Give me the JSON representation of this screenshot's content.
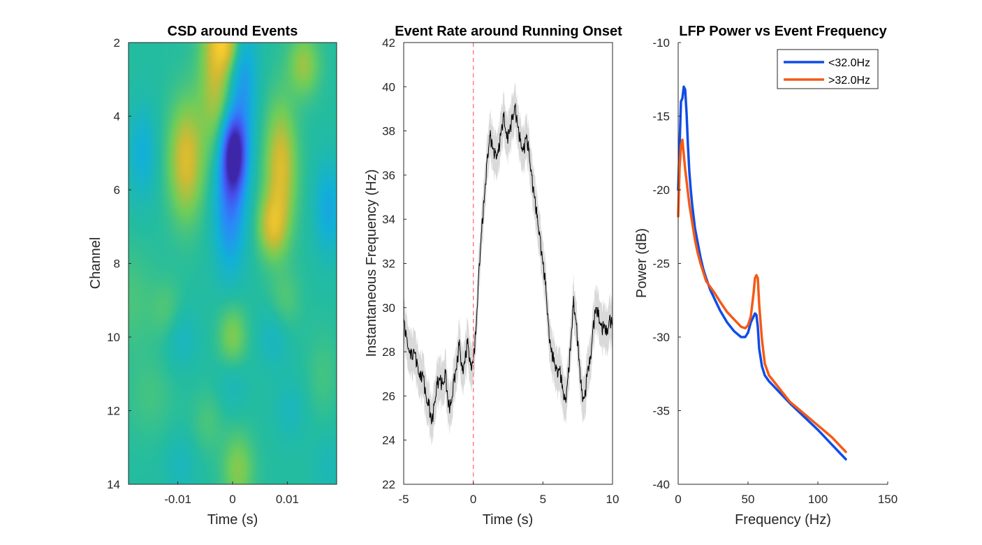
{
  "chart_data": [
    {
      "type": "heatmap",
      "title": "CSD around Events",
      "xlabel": "Time (s)",
      "ylabel": "Channel",
      "xlim": [
        -0.019,
        0.019
      ],
      "ylim": [
        2,
        14
      ],
      "y_reversed": true,
      "xticks": [
        -0.01,
        0,
        0.01
      ],
      "xtick_labels": [
        "-0.01",
        "0",
        "0.01"
      ],
      "yticks": [
        2,
        4,
        6,
        8,
        10,
        12,
        14
      ],
      "ytick_labels": [
        "2",
        "4",
        "6",
        "8",
        "10",
        "12",
        "14"
      ],
      "colormap": "parula",
      "color_range": [
        -1,
        1
      ],
      "features": [
        {
          "t": 0.0002,
          "ch": 5.0,
          "st": 0.0016,
          "sc": 0.75,
          "amp": -1.0
        },
        {
          "t": -0.0005,
          "ch": 6.5,
          "st": 0.002,
          "sc": 1.2,
          "amp": -0.5
        },
        {
          "t": 0.0018,
          "ch": 3.0,
          "st": 0.0018,
          "sc": 1.3,
          "amp": -0.4
        },
        {
          "t": -0.0085,
          "ch": 5.2,
          "st": 0.0022,
          "sc": 1.1,
          "amp": 0.55
        },
        {
          "t": 0.0088,
          "ch": 5.4,
          "st": 0.002,
          "sc": 1.2,
          "amp": 0.55
        },
        {
          "t": 0.0072,
          "ch": 7.0,
          "st": 0.0018,
          "sc": 0.6,
          "amp": 0.45
        },
        {
          "t": -0.003,
          "ch": 3.0,
          "st": 0.0022,
          "sc": 1.3,
          "amp": 0.45
        },
        {
          "t": -0.0012,
          "ch": 2.0,
          "st": 0.002,
          "sc": 0.5,
          "amp": 0.5
        },
        {
          "t": 0.013,
          "ch": 2.6,
          "st": 0.002,
          "sc": 0.6,
          "amp": 0.35
        },
        {
          "t": -0.0165,
          "ch": 5.0,
          "st": 0.0018,
          "sc": 0.9,
          "amp": -0.25
        },
        {
          "t": 0.0175,
          "ch": 6.5,
          "st": 0.0018,
          "sc": 0.9,
          "amp": -0.3
        },
        {
          "t": -0.0185,
          "ch": 9.0,
          "st": 0.003,
          "sc": 1.0,
          "amp": 0.12
        },
        {
          "t": -0.012,
          "ch": 9.3,
          "st": 0.002,
          "sc": 0.6,
          "amp": 0.15
        },
        {
          "t": 0.0095,
          "ch": 9.0,
          "st": 0.002,
          "sc": 0.6,
          "amp": 0.15
        },
        {
          "t": -0.0095,
          "ch": 10.0,
          "st": 0.0022,
          "sc": 0.6,
          "amp": -0.15
        },
        {
          "t": 0.0,
          "ch": 10.0,
          "st": 0.0018,
          "sc": 0.6,
          "amp": 0.3
        },
        {
          "t": 0.0075,
          "ch": 10.0,
          "st": 0.002,
          "sc": 0.6,
          "amp": -0.15
        },
        {
          "t": -0.015,
          "ch": 11.6,
          "st": 0.003,
          "sc": 0.8,
          "amp": 0.1
        },
        {
          "t": 0.0,
          "ch": 11.2,
          "st": 0.002,
          "sc": 0.6,
          "amp": -0.12
        },
        {
          "t": -0.0045,
          "ch": 12.3,
          "st": 0.002,
          "sc": 0.6,
          "amp": 0.12
        },
        {
          "t": 0.0105,
          "ch": 12.0,
          "st": 0.002,
          "sc": 0.6,
          "amp": -0.12
        },
        {
          "t": 0.001,
          "ch": 13.6,
          "st": 0.002,
          "sc": 0.7,
          "amp": 0.3
        },
        {
          "t": -0.0095,
          "ch": 13.5,
          "st": 0.002,
          "sc": 0.6,
          "amp": -0.12
        },
        {
          "t": 0.0175,
          "ch": 13.5,
          "st": 0.002,
          "sc": 0.6,
          "amp": -0.1
        },
        {
          "t": 0.0165,
          "ch": 11.0,
          "st": 0.002,
          "sc": 0.8,
          "amp": 0.1
        }
      ]
    },
    {
      "type": "line",
      "title": "Event Rate around Running Onset",
      "xlabel": "Time (s)",
      "ylabel": "Instantaneous Frequency (Hz)",
      "xlim": [
        -5,
        10
      ],
      "ylim": [
        22,
        42
      ],
      "xticks": [
        -5,
        0,
        5,
        10
      ],
      "yticks": [
        22,
        24,
        26,
        28,
        30,
        32,
        34,
        36,
        38,
        40,
        42
      ],
      "mean_color": "#000000",
      "band_color": "#d9d9d9",
      "band_halfwidth": 1.0,
      "onset_line": {
        "x": 0,
        "color": "#ff6f6f",
        "style": "dashed"
      },
      "x": [
        -5,
        -4.8,
        -4.5,
        -4.2,
        -4.0,
        -3.8,
        -3.6,
        -3.4,
        -3.2,
        -3.0,
        -2.8,
        -2.6,
        -2.4,
        -2.2,
        -2.0,
        -1.8,
        -1.6,
        -1.4,
        -1.2,
        -1.0,
        -0.8,
        -0.6,
        -0.4,
        -0.2,
        0.0,
        0.2,
        0.4,
        0.6,
        0.8,
        1.0,
        1.2,
        1.4,
        1.6,
        1.8,
        2.0,
        2.2,
        2.4,
        2.6,
        2.8,
        3.0,
        3.2,
        3.4,
        3.6,
        3.8,
        4.0,
        4.2,
        4.4,
        4.6,
        4.8,
        5.0,
        5.2,
        5.4,
        5.6,
        5.8,
        6.0,
        6.2,
        6.4,
        6.6,
        6.8,
        7.0,
        7.2,
        7.4,
        7.6,
        7.8,
        8.0,
        8.2,
        8.4,
        8.6,
        8.8,
        9.0,
        9.2,
        9.4,
        9.6,
        9.8,
        10.0
      ],
      "y": [
        29.5,
        28.5,
        27.8,
        28.0,
        27.2,
        26.8,
        27.0,
        25.8,
        25.6,
        24.8,
        25.5,
        26.5,
        26.8,
        26.4,
        27.0,
        25.6,
        25.5,
        26.6,
        27.3,
        28.4,
        27.0,
        27.6,
        28.5,
        27.2,
        27.6,
        29.0,
        31.5,
        33.5,
        35.0,
        36.6,
        37.8,
        37.2,
        36.8,
        37.0,
        38.0,
        38.6,
        37.6,
        38.0,
        38.5,
        39.0,
        38.2,
        37.4,
        37.0,
        37.8,
        37.0,
        35.8,
        35.0,
        34.0,
        33.0,
        32.0,
        31.0,
        29.0,
        28.0,
        27.6,
        27.0,
        27.2,
        26.4,
        25.6,
        26.8,
        28.4,
        30.2,
        29.2,
        27.6,
        26.0,
        25.8,
        27.2,
        27.5,
        29.0,
        30.0,
        29.6,
        29.0,
        29.2,
        28.8,
        29.4,
        29.3
      ]
    },
    {
      "type": "line",
      "title": "LFP Power vs Event Frequency",
      "xlabel": "Frequency (Hz)",
      "ylabel": "Power (dB)",
      "xlim": [
        0,
        150
      ],
      "ylim": [
        -40,
        -10
      ],
      "xticks": [
        0,
        50,
        100,
        150
      ],
      "yticks": [
        -40,
        -35,
        -30,
        -25,
        -20,
        -15,
        -10
      ],
      "legend": "top-right",
      "series": [
        {
          "name": "<32.0Hz",
          "color": "#0f4de8",
          "x": [
            0,
            1,
            2,
            3,
            4,
            5,
            6,
            7,
            8,
            9,
            10,
            11,
            12,
            14,
            16,
            18,
            20,
            23,
            26,
            30,
            35,
            40,
            45,
            48,
            50,
            52,
            54,
            55,
            56,
            57,
            58,
            60,
            62,
            65,
            70,
            75,
            80,
            90,
            100,
            110,
            120
          ],
          "y": [
            -20.0,
            -17.0,
            -14.0,
            -13.8,
            -13.0,
            -13.2,
            -14.8,
            -17.0,
            -18.8,
            -20.0,
            -21.0,
            -21.8,
            -22.6,
            -23.6,
            -24.6,
            -25.4,
            -26.0,
            -26.8,
            -27.4,
            -28.2,
            -29.0,
            -29.6,
            -30.0,
            -30.0,
            -29.7,
            -29.0,
            -28.6,
            -28.4,
            -28.5,
            -29.3,
            -30.8,
            -32.0,
            -32.6,
            -33.0,
            -33.5,
            -34.0,
            -34.5,
            -35.4,
            -36.3,
            -37.3,
            -38.3
          ]
        },
        {
          "name": ">32.0Hz",
          "color": "#f45a16",
          "x": [
            0,
            1,
            2,
            3,
            4,
            5,
            6,
            7,
            8,
            9,
            10,
            11,
            12,
            14,
            16,
            18,
            20,
            23,
            26,
            30,
            35,
            40,
            45,
            48,
            50,
            52,
            54,
            55,
            56,
            57,
            58,
            60,
            62,
            65,
            70,
            75,
            80,
            90,
            100,
            110,
            120
          ],
          "y": [
            -21.8,
            -18.5,
            -17.0,
            -16.6,
            -17.6,
            -18.6,
            -19.4,
            -20.2,
            -21.0,
            -21.6,
            -22.2,
            -22.8,
            -23.4,
            -24.3,
            -25.0,
            -25.6,
            -26.2,
            -26.6,
            -27.0,
            -27.6,
            -28.3,
            -28.8,
            -29.3,
            -29.4,
            -29.2,
            -28.6,
            -27.0,
            -26.0,
            -25.8,
            -26.0,
            -27.8,
            -30.2,
            -31.8,
            -32.6,
            -33.2,
            -33.8,
            -34.4,
            -35.2,
            -36.0,
            -36.8,
            -37.8
          ]
        }
      ]
    }
  ]
}
